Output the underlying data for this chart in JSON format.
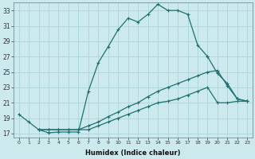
{
  "xlabel": "Humidex (Indice chaleur)",
  "ylabel": "",
  "bg_color": "#cce9ed",
  "line_color": "#1e7070",
  "grid_color": "#b0d8dc",
  "xlim": [
    -0.5,
    23.5
  ],
  "ylim": [
    16.5,
    34.0
  ],
  "xticks": [
    0,
    1,
    2,
    3,
    4,
    5,
    6,
    7,
    8,
    9,
    10,
    11,
    12,
    13,
    14,
    15,
    16,
    17,
    18,
    19,
    20,
    21,
    22,
    23
  ],
  "yticks": [
    17,
    19,
    21,
    23,
    25,
    27,
    29,
    31,
    33
  ],
  "series": [
    {
      "x": [
        0,
        1,
        2,
        3,
        4,
        5,
        6,
        7,
        8,
        9,
        10,
        11,
        12,
        13,
        14,
        15,
        16,
        17,
        18,
        19
      ],
      "y": [
        19.5,
        18.5,
        17.5,
        17.1,
        17.2,
        17.2,
        17.2,
        22.5,
        26.2,
        28.3,
        30.5,
        32.0,
        31.5,
        32.5,
        33.8,
        33.0,
        33.0,
        32.5,
        28.5,
        27.0
      ]
    },
    {
      "x": [
        19,
        20,
        21,
        22,
        23
      ],
      "y": [
        27.0,
        24.8,
        23.5,
        21.5,
        21.2
      ]
    },
    {
      "x": [
        2,
        3,
        4,
        5,
        6,
        7,
        8,
        9,
        10,
        11,
        12,
        13,
        14,
        15,
        16,
        17,
        18,
        19,
        20,
        21,
        22,
        23
      ],
      "y": [
        17.5,
        17.5,
        17.5,
        17.5,
        17.5,
        18.0,
        18.5,
        19.2,
        19.8,
        20.5,
        21.0,
        21.8,
        22.5,
        23.0,
        23.5,
        24.0,
        24.5,
        25.0,
        25.2,
        23.2,
        21.5,
        21.2
      ]
    },
    {
      "x": [
        2,
        3,
        4,
        5,
        6,
        7,
        8,
        9,
        10,
        11,
        12,
        13,
        14,
        15,
        16,
        17,
        18,
        19,
        20,
        21,
        22,
        23
      ],
      "y": [
        17.5,
        17.5,
        17.5,
        17.5,
        17.5,
        17.5,
        18.0,
        18.5,
        19.0,
        19.5,
        20.0,
        20.5,
        21.0,
        21.2,
        21.5,
        22.0,
        22.5,
        23.0,
        21.0,
        21.0,
        21.2,
        21.2
      ]
    }
  ]
}
